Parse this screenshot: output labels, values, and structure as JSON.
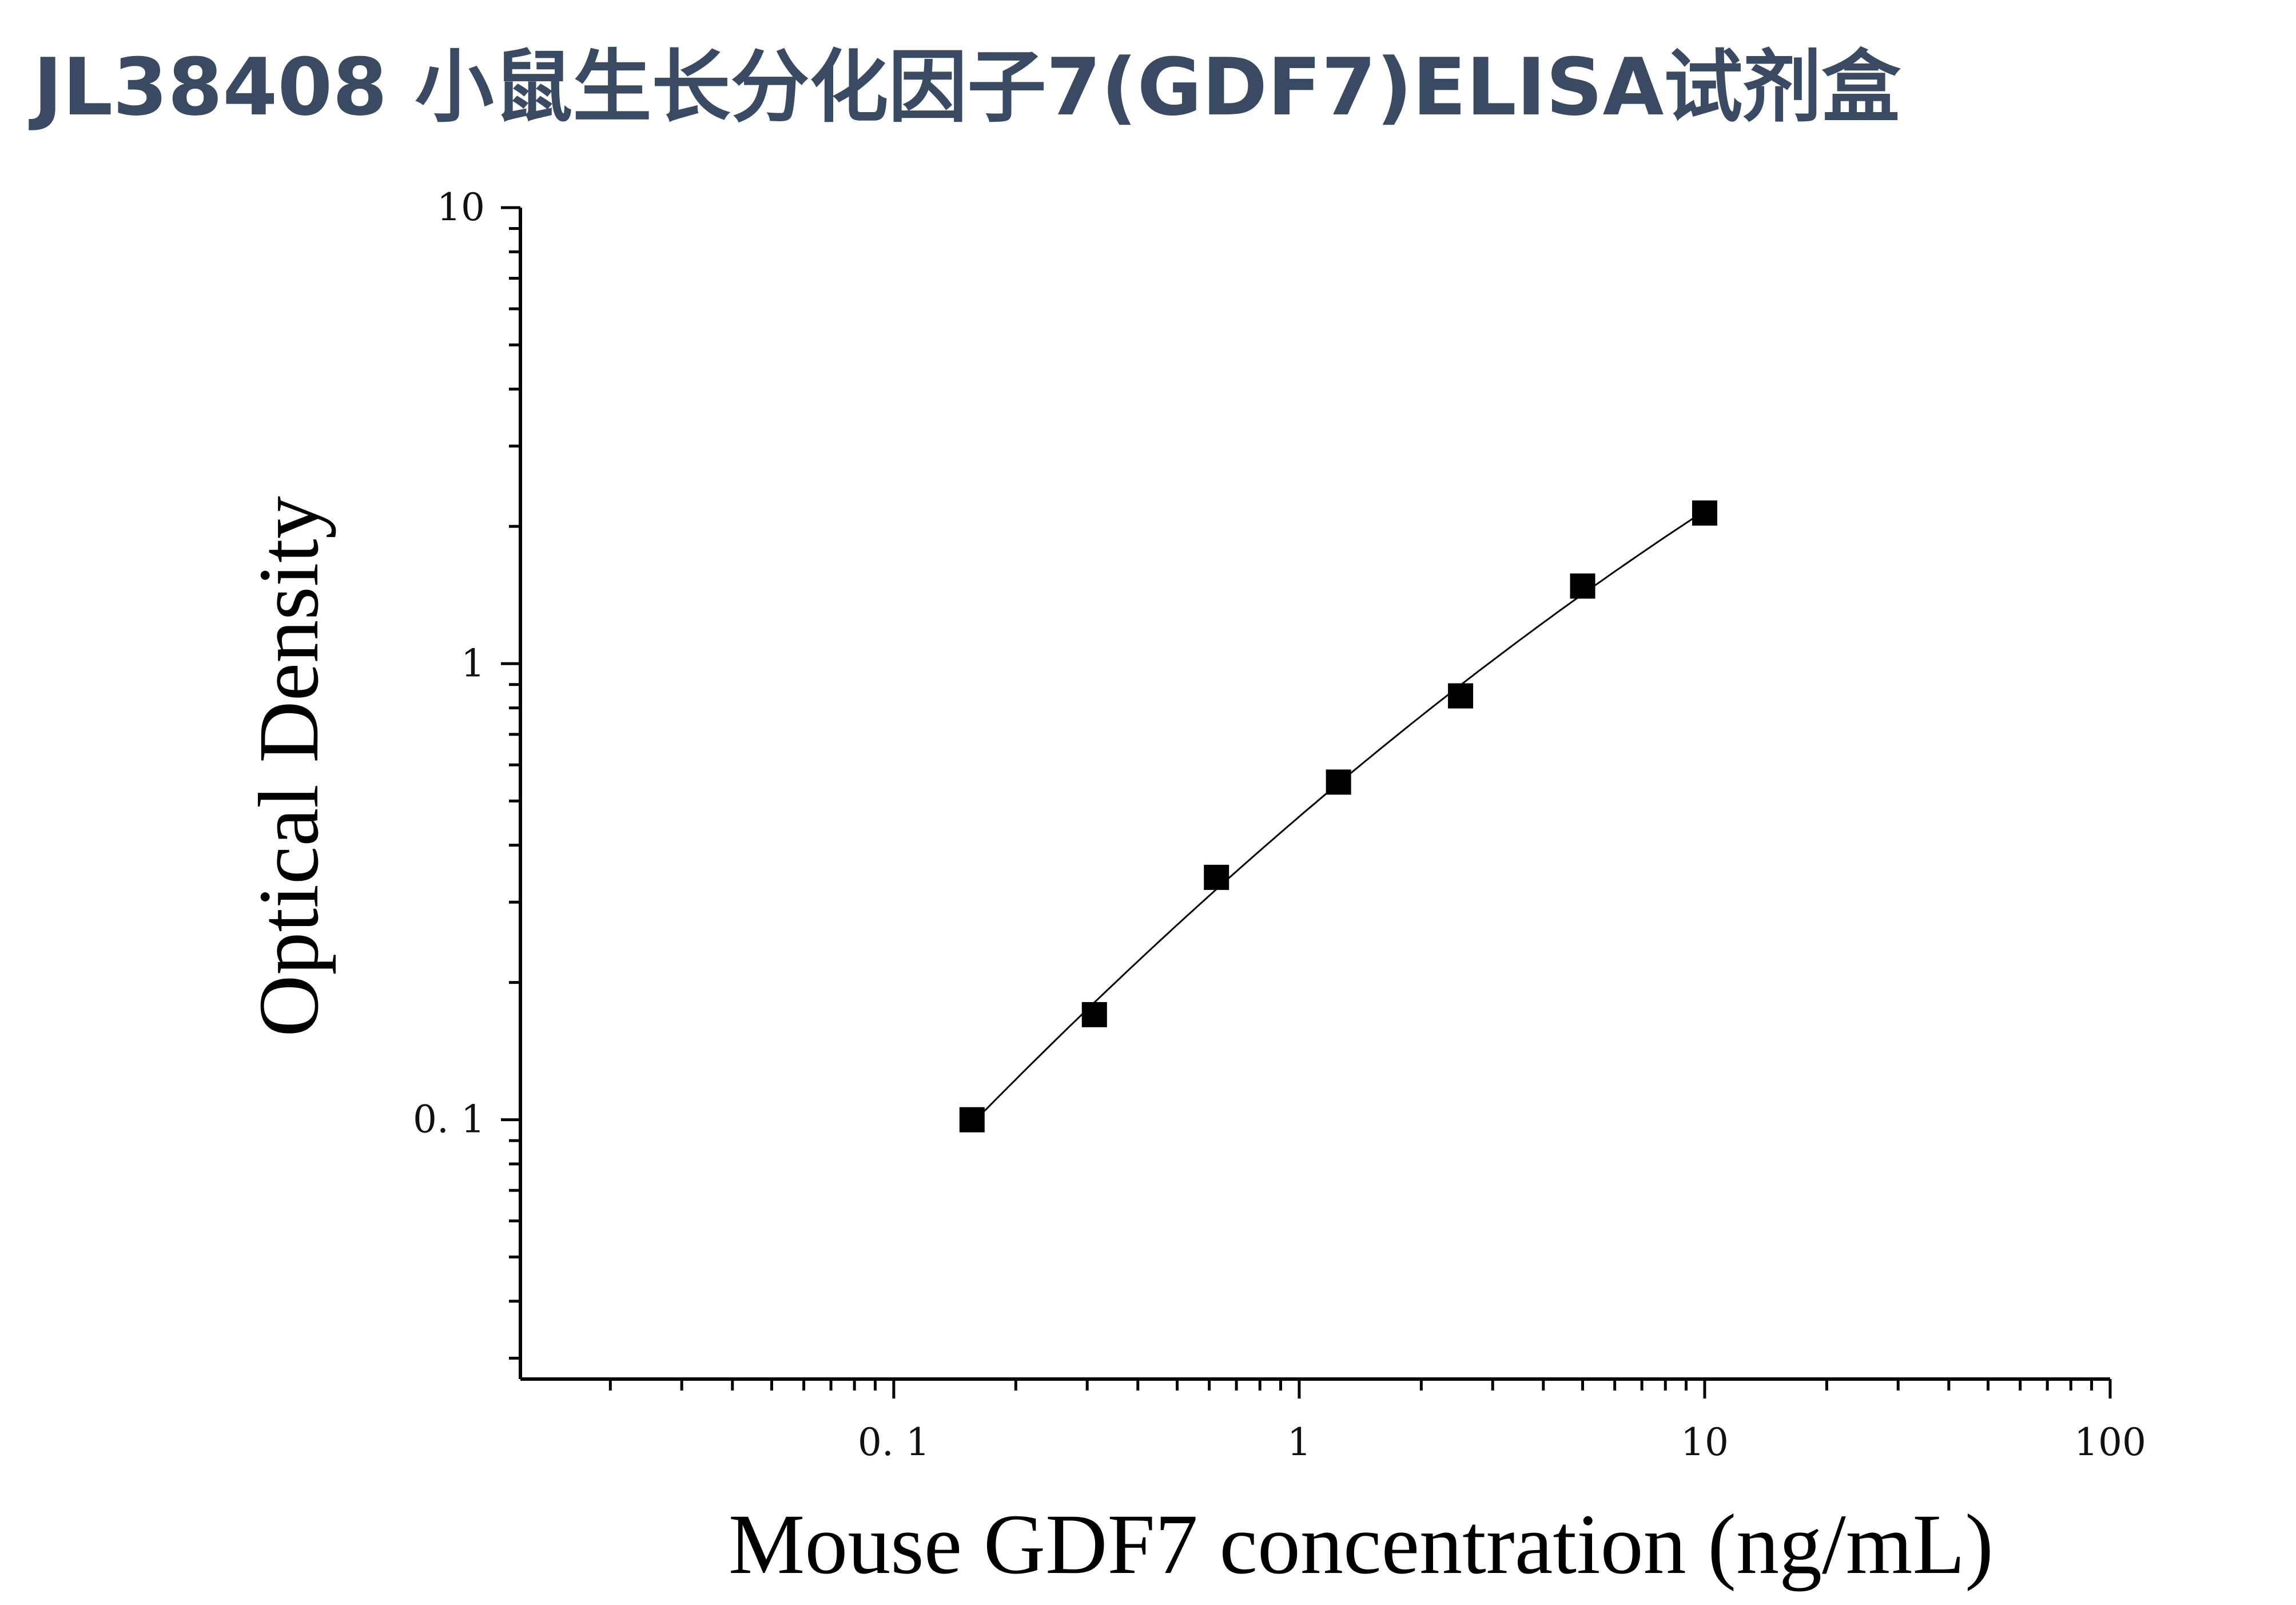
{
  "title": "JL38408 小鼠生长分化因子7(GDF7)ELISA试剂盒",
  "chart_data": {
    "type": "scatter",
    "title": "JL38408 小鼠生长分化因子7(GDF7)ELISA试剂盒",
    "xlabel": "Mouse GDF7 concentration (ng/mL)",
    "ylabel": "Optical Density",
    "xscale": "log",
    "yscale": "log",
    "xlim": [
      0.012,
      100
    ],
    "ylim": [
      0.027,
      10
    ],
    "xticks": [
      0.1,
      1,
      10,
      100
    ],
    "xtick_labels": [
      "0. 1",
      "1",
      "10",
      "100"
    ],
    "yticks": [
      0.1,
      1,
      10
    ],
    "ytick_labels": [
      "0. 1",
      "1",
      "10"
    ],
    "grid": false,
    "legend": "none",
    "marker": "square",
    "marker_color": "#000000",
    "series": [
      {
        "x": [
          0.156,
          0.3125,
          0.625,
          1.25,
          2.5,
          5,
          10
        ],
        "y": [
          0.1,
          0.17,
          0.34,
          0.55,
          0.85,
          1.48,
          2.14
        ],
        "fit": "smooth-curve"
      }
    ]
  }
}
